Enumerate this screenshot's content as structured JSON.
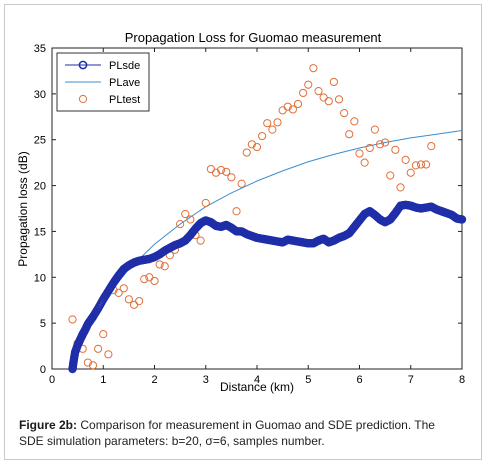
{
  "chart_data": {
    "type": "scatter",
    "title": "Propagation Loss for Guomao measurement",
    "xlabel": "Distance (km)",
    "ylabel": "Propagation loss (dB)",
    "xlim": [
      0,
      8
    ],
    "ylim": [
      0,
      35
    ],
    "xticks": [
      "0",
      "1",
      "2",
      "3",
      "4",
      "5",
      "6",
      "7",
      "8"
    ],
    "yticks": [
      "0",
      "5",
      "10",
      "15",
      "20",
      "25",
      "30",
      "35"
    ],
    "grid": false,
    "legend_position": "top-left",
    "series": [
      {
        "name": "PLsde",
        "kind": "markers",
        "marker": "circle",
        "color": "#1f2ea8",
        "x": [
          0.4,
          0.42,
          0.45,
          0.5,
          0.55,
          0.6,
          0.65,
          0.7,
          0.75,
          0.8,
          0.9,
          1.0,
          1.1,
          1.2,
          1.3,
          1.4,
          1.5,
          1.6,
          1.7,
          1.8,
          1.9,
          2.0,
          2.1,
          2.2,
          2.3,
          2.4,
          2.5,
          2.6,
          2.7,
          2.8,
          2.9,
          3.0,
          3.1,
          3.2,
          3.3,
          3.4,
          3.5,
          3.6,
          3.7,
          3.8,
          3.9,
          4.0,
          4.1,
          4.2,
          4.3,
          4.4,
          4.5,
          4.6,
          4.7,
          4.8,
          4.9,
          5.0,
          5.1,
          5.2,
          5.3,
          5.4,
          5.5,
          5.6,
          5.7,
          5.8,
          5.9,
          6.0,
          6.1,
          6.2,
          6.3,
          6.4,
          6.5,
          6.6,
          6.7,
          6.8,
          6.9,
          7.0,
          7.1,
          7.2,
          7.3,
          7.4,
          7.5,
          7.6,
          7.7,
          7.8,
          7.9,
          8.0
        ],
        "y": [
          0.0,
          0.8,
          1.8,
          2.6,
          3.2,
          3.8,
          4.3,
          4.9,
          5.3,
          5.7,
          6.6,
          7.6,
          8.5,
          9.4,
          10.2,
          10.9,
          11.3,
          11.6,
          11.8,
          11.9,
          12.0,
          12.2,
          12.5,
          12.9,
          13.2,
          13.5,
          13.7,
          14.0,
          14.6,
          15.3,
          15.9,
          16.2,
          16.0,
          15.6,
          15.5,
          15.7,
          15.4,
          15.0,
          15.0,
          14.7,
          14.5,
          14.3,
          14.2,
          14.1,
          14.0,
          13.9,
          13.8,
          14.1,
          14.0,
          13.9,
          13.8,
          13.7,
          13.7,
          14.0,
          14.2,
          13.8,
          14.0,
          14.3,
          14.5,
          14.8,
          15.5,
          16.2,
          16.9,
          17.2,
          16.8,
          16.3,
          16.0,
          16.3,
          17.0,
          17.8,
          17.9,
          17.8,
          17.6,
          17.5,
          17.6,
          17.7,
          17.4,
          17.2,
          17.0,
          16.8,
          16.4,
          16.3
        ]
      },
      {
        "name": "PLave",
        "kind": "line",
        "color": "#3b8ed0",
        "x": [
          0.4,
          0.5,
          0.6,
          0.8,
          1.0,
          1.2,
          1.5,
          2.0,
          2.5,
          3.0,
          3.5,
          4.0,
          4.5,
          5.0,
          5.5,
          6.0,
          6.5,
          7.0,
          7.5,
          8.0
        ],
        "y": [
          0.0,
          1.5,
          2.9,
          5.2,
          7.2,
          8.8,
          10.9,
          13.6,
          15.8,
          17.7,
          19.2,
          20.5,
          21.6,
          22.6,
          23.4,
          24.1,
          24.7,
          25.2,
          25.6,
          26.0
        ]
      },
      {
        "name": "PLtest",
        "kind": "markers",
        "marker": "circle-open",
        "color": "#e0703a",
        "x": [
          0.4,
          0.5,
          0.6,
          0.7,
          0.8,
          0.9,
          1.0,
          1.1,
          1.2,
          1.3,
          1.4,
          1.5,
          1.6,
          1.7,
          1.8,
          1.9,
          2.0,
          2.1,
          2.2,
          2.3,
          2.4,
          2.5,
          2.6,
          2.7,
          2.8,
          2.9,
          3.0,
          3.1,
          3.2,
          3.3,
          3.4,
          3.5,
          3.6,
          3.7,
          3.8,
          3.9,
          4.0,
          4.1,
          4.2,
          4.3,
          4.4,
          4.5,
          4.6,
          4.7,
          4.8,
          4.9,
          5.0,
          5.1,
          5.2,
          5.3,
          5.4,
          5.5,
          5.6,
          5.7,
          5.8,
          5.9,
          6.0,
          6.1,
          6.2,
          6.3,
          6.4,
          6.5,
          6.6,
          6.7,
          6.8,
          6.9,
          7.0,
          7.1,
          7.2,
          7.3,
          7.4
        ],
        "y": [
          5.4,
          2.8,
          2.2,
          0.7,
          0.4,
          2.2,
          3.8,
          1.6,
          8.6,
          8.3,
          8.8,
          7.6,
          7.0,
          7.4,
          9.8,
          10.0,
          9.6,
          11.4,
          11.2,
          12.4,
          13.0,
          15.8,
          16.9,
          16.3,
          14.6,
          14.0,
          18.1,
          21.8,
          21.4,
          21.7,
          21.5,
          20.9,
          17.2,
          20.2,
          23.6,
          24.5,
          24.2,
          25.4,
          26.8,
          26.1,
          26.9,
          28.2,
          28.6,
          28.3,
          28.9,
          30.1,
          31.0,
          32.8,
          30.3,
          29.6,
          29.2,
          31.3,
          29.4,
          27.9,
          25.6,
          27.0,
          23.5,
          22.5,
          24.1,
          26.1,
          24.5,
          24.7,
          21.1,
          23.9,
          19.8,
          22.8,
          21.4,
          22.2,
          22.3,
          22.3,
          24.3
        ]
      }
    ]
  },
  "caption": {
    "figure_label": "Figure 2b:",
    "text_line1": " Comparison for measurement in Guomao and SDE prediction. The",
    "text_line2": "SDE simulation parameters: b=20, σ=6, samples number."
  }
}
